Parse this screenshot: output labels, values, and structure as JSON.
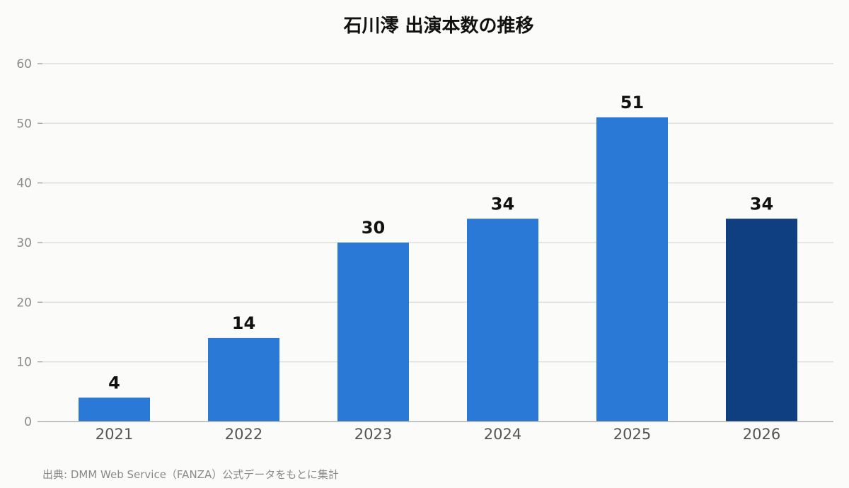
{
  "chart_data": {
    "type": "bar",
    "title": "石川澪 出演本数の推移",
    "categories": [
      "2021",
      "2022",
      "2023",
      "2024",
      "2025",
      "2026"
    ],
    "values": [
      4,
      14,
      30,
      34,
      51,
      34
    ],
    "data_labels": [
      "4",
      "14",
      "30",
      "34",
      "51",
      "34"
    ],
    "xlabel": "",
    "ylabel": "",
    "ylim": [
      0,
      60
    ],
    "yticks": [
      "0",
      "10",
      "20",
      "30",
      "40",
      "50",
      "60"
    ],
    "grid": true,
    "legend": "none",
    "colors": {
      "bar": "#2a79d6",
      "highlight": "#0f3f80",
      "grid": "#dedede",
      "axis": "#b0b0b0"
    },
    "highlight_index": 5,
    "source": "出典: DMM Web Service（FANZA）公式データをもとに集計"
  }
}
